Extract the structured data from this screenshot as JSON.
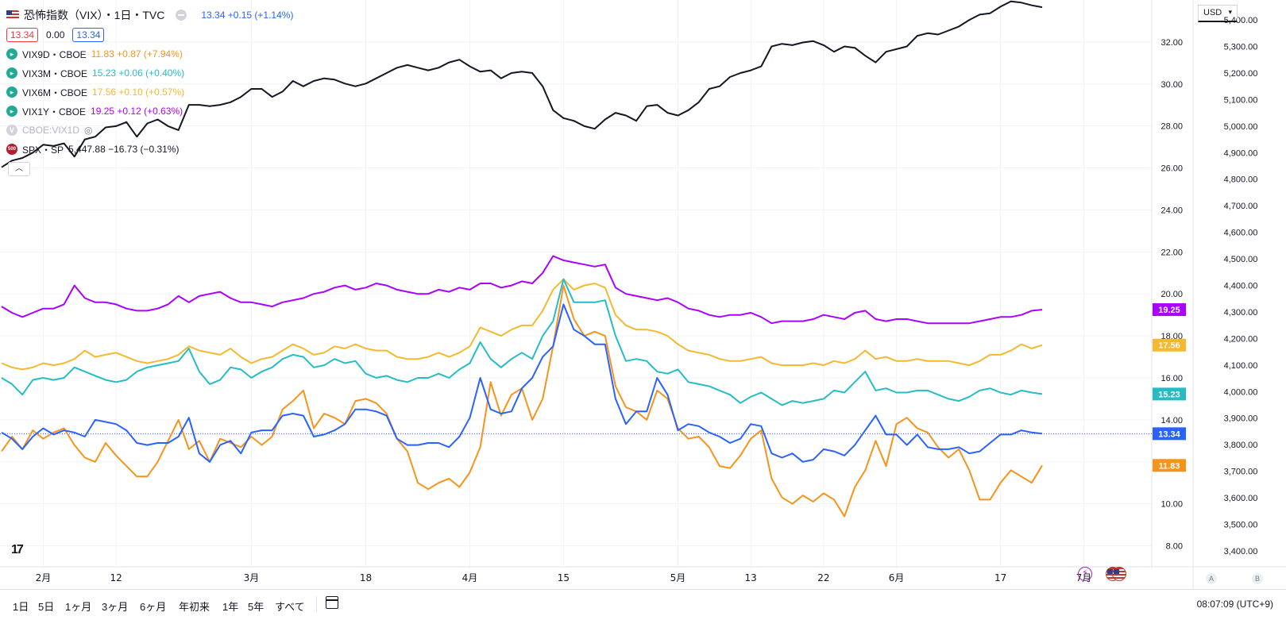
{
  "header": {
    "title": "恐怖指数（VIX）・1日・TVC",
    "quote": "13.34 +0.15 (+1.14%)",
    "bid": "13.34",
    "spread": "0.00",
    "ask": "13.34"
  },
  "legend": [
    {
      "symbol": "VIX9D・CBOE",
      "value": "11.83 +0.87 (+7.94%)",
      "color": "#f7931a"
    },
    {
      "symbol": "VIX3M・CBOE",
      "value": "15.23 +0.06 (+0.40%)",
      "color": "#26bcc6"
    },
    {
      "symbol": "VIX6M・CBOE",
      "value": "17.56 +0.10 (+0.57%)",
      "color": "#f5b82e"
    },
    {
      "symbol": "VIX1Y・CBOE",
      "value": "19.25 +0.12 (+0.63%)",
      "color": "#aa00ff"
    }
  ],
  "hidden_symbol": "CBOE:VIX1D",
  "hidden_icon": "V",
  "spx": {
    "symbol": "SPX・SP",
    "value": "5,447.88 −16.73 (−0.31%)",
    "badge": "500"
  },
  "currency": "USD",
  "scale_buttons": [
    "A",
    "B"
  ],
  "time_ranges": [
    "1日",
    "5日",
    "1ヶ月",
    "3ヶ月",
    "6ヶ月",
    "年初来",
    "1年",
    "5年",
    "すべて"
  ],
  "clock": "08:07:09 (UTC+9)",
  "logo_text": "17",
  "event_icon": "⚡",
  "chart_data": {
    "type": "line",
    "x_ticks": [
      {
        "label": "2月",
        "i": 4
      },
      {
        "label": "12",
        "i": 11
      },
      {
        "label": "3月",
        "i": 24
      },
      {
        "label": "18",
        "i": 35
      },
      {
        "label": "4月",
        "i": 45
      },
      {
        "label": "15",
        "i": 54
      },
      {
        "label": "5月",
        "i": 65
      },
      {
        "label": "13",
        "i": 72
      },
      {
        "label": "22",
        "i": 79
      },
      {
        "label": "6月",
        "i": 86
      },
      {
        "label": "17",
        "i": 96
      },
      {
        "label": "7月",
        "i": 104
      }
    ],
    "left_axis": {
      "min": 7.0,
      "max": 34.0,
      "ticks": [
        "8.00",
        "10.00",
        "12.00",
        "14.00",
        "16.00",
        "18.00",
        "20.00",
        "22.00",
        "24.00",
        "26.00",
        "28.00",
        "30.00",
        "32.00"
      ]
    },
    "right_axis": {
      "min": 3340,
      "max": 5475,
      "ticks": [
        "3,400.00",
        "3,500.00",
        "3,600.00",
        "3,700.00",
        "3,800.00",
        "3,900.00",
        "4,000.00",
        "4,100.00",
        "4,200.00",
        "4,300.00",
        "4,400.00",
        "4,500.00",
        "4,600.00",
        "4,700.00",
        "4,800.00",
        "4,900.00",
        "5,000.00",
        "5,100.00",
        "5,200.00",
        "5,300.00",
        "5,400.00"
      ]
    },
    "price_line": 13.34,
    "last_labels": [
      {
        "text": "19.25",
        "value": 19.25,
        "color": "#aa00ff"
      },
      {
        "text": "17.56",
        "value": 17.56,
        "color": "#f5b82e"
      },
      {
        "text": "15.23",
        "value": 15.23,
        "color": "#26bcc6"
      },
      {
        "text": "13.34",
        "value": 13.34,
        "color": "#2962ff"
      },
      {
        "text": "11.83",
        "value": 11.83,
        "color": "#f7931a"
      }
    ],
    "series": [
      {
        "name": "恐怖指数（VIX）",
        "color": "#2962ff",
        "axis": "left",
        "values": [
          13.4,
          13.1,
          12.6,
          13.2,
          13.6,
          13.3,
          13.5,
          13.4,
          13.2,
          14.0,
          13.9,
          13.8,
          13.5,
          12.9,
          12.8,
          12.9,
          12.9,
          13.2,
          14.1,
          12.4,
          12.0,
          12.8,
          13.0,
          12.4,
          13.4,
          13.5,
          13.5,
          14.2,
          14.3,
          14.2,
          13.2,
          13.3,
          13.5,
          13.8,
          14.5,
          14.5,
          14.4,
          14.2,
          13.1,
          12.8,
          12.8,
          12.9,
          12.9,
          12.7,
          13.2,
          14.1,
          16.0,
          14.5,
          14.3,
          14.4,
          15.5,
          16.0,
          17.0,
          17.5,
          19.5,
          18.3,
          18.0,
          17.6,
          17.6,
          15.0,
          13.8,
          14.4,
          14.4,
          16.0,
          15.2,
          13.5,
          13.8,
          13.7,
          13.4,
          13.2,
          12.9,
          13.1,
          13.8,
          13.7,
          12.4,
          12.2,
          12.4,
          12.0,
          12.1,
          12.6,
          12.5,
          12.3,
          12.8,
          13.5,
          14.2,
          13.3,
          13.3,
          12.8,
          13.3,
          12.7,
          12.6,
          12.6,
          12.7,
          12.4,
          12.5,
          12.9,
          13.3,
          13.3,
          13.5,
          13.4,
          13.34
        ]
      },
      {
        "name": "VIX9D",
        "color": "#f7931a",
        "axis": "left",
        "values": [
          12.5,
          13.2,
          12.6,
          13.5,
          13.1,
          13.4,
          13.6,
          12.8,
          12.2,
          12.0,
          12.9,
          12.3,
          11.8,
          11.3,
          11.3,
          12.0,
          13.0,
          14.0,
          12.6,
          13.0,
          12.0,
          13.1,
          12.9,
          12.7,
          13.2,
          12.8,
          13.2,
          14.5,
          14.9,
          15.4,
          13.6,
          14.3,
          14.1,
          13.8,
          14.9,
          15.0,
          14.8,
          14.3,
          13.1,
          12.5,
          11.0,
          10.7,
          11.0,
          11.2,
          10.8,
          11.5,
          12.7,
          15.8,
          14.2,
          15.2,
          15.5,
          14.0,
          15.0,
          17.5,
          20.4,
          18.8,
          18.0,
          18.2,
          18.0,
          15.6,
          14.6,
          14.4,
          14.0,
          15.4,
          15.0,
          13.6,
          13.1,
          13.2,
          12.7,
          11.8,
          11.7,
          12.3,
          13.1,
          13.5,
          11.2,
          10.3,
          10.0,
          10.4,
          10.1,
          10.5,
          10.2,
          9.4,
          10.8,
          11.6,
          13.0,
          11.8,
          13.8,
          14.1,
          13.6,
          13.4,
          12.7,
          12.2,
          12.6,
          11.6,
          10.2,
          10.2,
          11.0,
          11.6,
          11.3,
          11.0,
          11.83
        ]
      },
      {
        "name": "VIX3M",
        "color": "#26bcc6",
        "axis": "left",
        "values": [
          16.0,
          15.7,
          15.2,
          15.9,
          16.0,
          15.9,
          16.0,
          16.5,
          16.3,
          16.1,
          15.9,
          15.8,
          15.9,
          16.3,
          16.5,
          16.6,
          16.7,
          16.8,
          17.4,
          16.3,
          15.7,
          15.9,
          16.5,
          16.4,
          16.0,
          16.3,
          16.5,
          16.9,
          17.1,
          17.0,
          16.5,
          16.6,
          16.9,
          16.7,
          16.8,
          16.2,
          16.0,
          16.1,
          15.9,
          15.8,
          16.0,
          16.0,
          16.2,
          16.0,
          16.4,
          16.7,
          17.7,
          16.9,
          16.5,
          16.9,
          17.2,
          16.9,
          18.0,
          18.7,
          20.7,
          19.6,
          19.6,
          19.6,
          19.7,
          18.0,
          16.8,
          16.9,
          16.8,
          16.3,
          16.2,
          16.4,
          15.8,
          15.7,
          15.6,
          15.4,
          15.2,
          14.8,
          15.1,
          15.3,
          15.0,
          14.7,
          14.9,
          14.8,
          14.9,
          15.0,
          15.4,
          15.3,
          15.8,
          16.3,
          15.4,
          15.5,
          15.3,
          15.3,
          15.4,
          15.4,
          15.2,
          15.0,
          14.9,
          15.1,
          15.4,
          15.5,
          15.3,
          15.2,
          15.4,
          15.3,
          15.23
        ]
      },
      {
        "name": "VIX6M",
        "color": "#f5b82e",
        "axis": "left",
        "values": [
          16.7,
          16.5,
          16.4,
          16.5,
          16.7,
          16.6,
          16.7,
          16.9,
          17.3,
          17.0,
          17.1,
          17.2,
          17.0,
          16.8,
          16.7,
          16.8,
          16.9,
          17.1,
          17.5,
          17.3,
          17.2,
          17.1,
          17.4,
          17.0,
          16.7,
          16.9,
          17.0,
          17.3,
          17.6,
          17.4,
          17.1,
          17.2,
          17.5,
          17.4,
          17.6,
          17.4,
          17.3,
          17.3,
          17.0,
          16.9,
          16.9,
          17.0,
          17.2,
          17.0,
          17.2,
          17.5,
          18.4,
          18.2,
          18.0,
          18.3,
          18.5,
          18.5,
          19.2,
          20.2,
          20.7,
          20.2,
          20.4,
          20.5,
          20.3,
          19.0,
          18.5,
          18.3,
          18.3,
          18.2,
          18.0,
          17.6,
          17.3,
          17.2,
          17.1,
          16.9,
          16.8,
          16.8,
          16.9,
          17.0,
          16.7,
          16.6,
          16.6,
          16.6,
          16.7,
          16.6,
          16.8,
          16.7,
          16.9,
          17.3,
          16.9,
          17.0,
          16.8,
          16.8,
          16.9,
          16.8,
          16.8,
          16.8,
          16.7,
          16.6,
          16.8,
          17.1,
          17.1,
          17.3,
          17.6,
          17.4,
          17.56
        ]
      },
      {
        "name": "VIX1Y",
        "color": "#aa00ff",
        "axis": "left",
        "values": [
          19.4,
          19.1,
          18.9,
          19.1,
          19.3,
          19.3,
          19.5,
          20.4,
          19.8,
          19.6,
          19.6,
          19.5,
          19.3,
          19.2,
          19.2,
          19.3,
          19.5,
          19.9,
          19.6,
          19.9,
          20.0,
          20.1,
          19.8,
          19.6,
          19.6,
          19.5,
          19.4,
          19.6,
          19.7,
          19.8,
          20.0,
          20.1,
          20.3,
          20.4,
          20.2,
          20.3,
          20.5,
          20.4,
          20.2,
          20.1,
          20.0,
          20.0,
          20.2,
          20.1,
          20.3,
          20.2,
          20.5,
          20.5,
          20.3,
          20.4,
          20.6,
          20.5,
          21.0,
          21.8,
          21.6,
          21.5,
          21.4,
          21.3,
          21.4,
          20.3,
          20.0,
          19.9,
          19.8,
          19.7,
          19.8,
          19.6,
          19.3,
          19.2,
          19.0,
          18.9,
          19.0,
          19.0,
          19.1,
          18.9,
          18.6,
          18.7,
          18.7,
          18.7,
          18.8,
          19.0,
          18.9,
          18.8,
          19.1,
          19.2,
          18.8,
          18.7,
          18.8,
          18.8,
          18.7,
          18.6,
          18.6,
          18.6,
          18.6,
          18.6,
          18.7,
          18.8,
          18.9,
          18.9,
          19.0,
          19.2,
          19.25
        ]
      },
      {
        "name": "SPX",
        "color": "#131722",
        "axis": "right",
        "values": [
          4845,
          4870,
          4880,
          4900,
          4930,
          4925,
          4935,
          4885,
          4950,
          4960,
          4995,
          5000,
          5015,
          4960,
          5010,
          5025,
          5000,
          4985,
          5080,
          5080,
          5075,
          5080,
          5090,
          5110,
          5140,
          5140,
          5110,
          5130,
          5170,
          5150,
          5170,
          5180,
          5175,
          5160,
          5150,
          5160,
          5180,
          5200,
          5220,
          5230,
          5220,
          5210,
          5220,
          5240,
          5250,
          5225,
          5205,
          5210,
          5180,
          5200,
          5205,
          5200,
          5150,
          5060,
          5030,
          5020,
          5000,
          4990,
          5025,
          5050,
          5040,
          5020,
          5075,
          5080,
          5050,
          5040,
          5060,
          5090,
          5140,
          5150,
          5185,
          5200,
          5210,
          5225,
          5300,
          5310,
          5305,
          5315,
          5320,
          5305,
          5280,
          5300,
          5295,
          5265,
          5240,
          5280,
          5290,
          5300,
          5340,
          5350,
          5345,
          5360,
          5375,
          5400,
          5420,
          5425,
          5450,
          5470,
          5465,
          5455,
          5447.88
        ]
      }
    ]
  }
}
